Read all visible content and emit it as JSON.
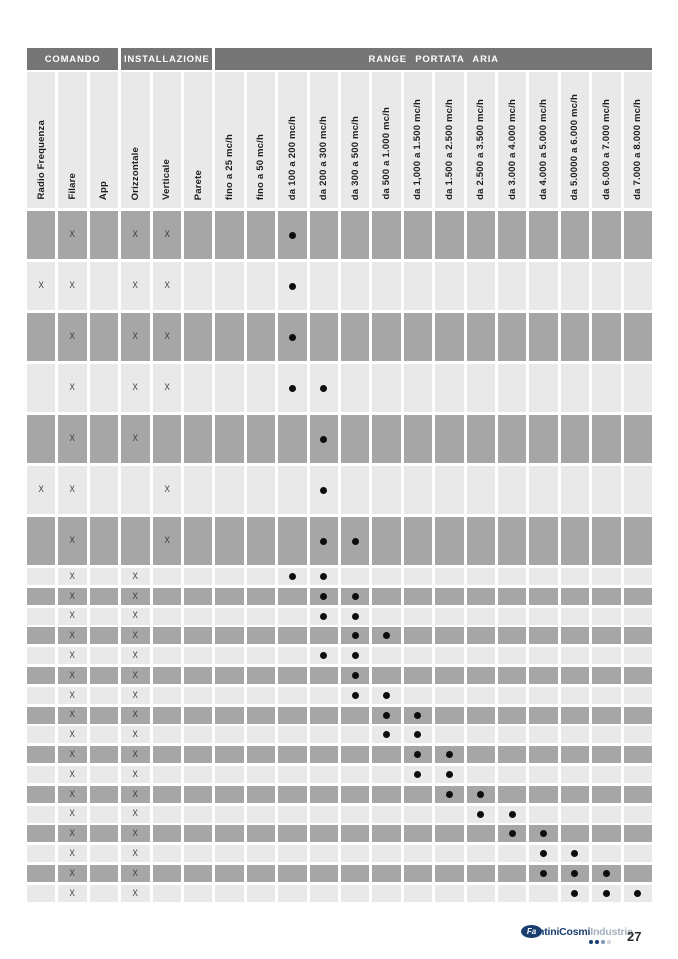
{
  "colors": {
    "header_band": "#757575",
    "row_dark": "#a6a6a6",
    "row_light": "#e9e9e9",
    "x_mark": "#3a3a3a",
    "dot": "#0d0d0d",
    "logo_blue": "#1a3e6f",
    "logo_gray": "#a5b1be"
  },
  "table": {
    "groups": [
      {
        "label": "COMANDO",
        "span": 3
      },
      {
        "label": "INSTALLAZIONE",
        "span": 3
      },
      {
        "label": "RANGE PORTATA ARIA",
        "span": 14
      }
    ],
    "columns": [
      "Radio Frequenza",
      "Filare",
      "App",
      "Orizzontale",
      "Verticale",
      "Parete",
      "fino a 25 mc/h",
      "fino a 50 mc/h",
      "da 100 a 200 mc/h",
      "da 200 a 300 mc/h",
      "da 300 a 500 mc/h",
      "da 500 a 1.000 mc/h",
      "da 1,000 a 1.500 mc/h",
      "da 1.500 a 2.500 mc/h",
      "da 2.500 a 3.500 mc/h",
      "da 3.000 a 4.000 mc/h",
      "da 4.000 a 5.000 mc/h",
      "da 5.0000 a 6.000 mc/h",
      "da 6.000 a 7.000 mc/h",
      "da 7.000 a 8.000 mc/h"
    ],
    "x_symbol": "X",
    "rows": [
      {
        "size": "tall",
        "shade": "dark",
        "x": [
          1,
          3,
          4
        ],
        "dots": [
          8
        ]
      },
      {
        "size": "tall",
        "shade": "light",
        "x": [
          0,
          1,
          3,
          4
        ],
        "dots": [
          8
        ]
      },
      {
        "size": "tall",
        "shade": "dark",
        "x": [
          1,
          3,
          4
        ],
        "dots": [
          8
        ]
      },
      {
        "size": "tall",
        "shade": "light",
        "x": [
          1,
          3,
          4
        ],
        "dots": [
          8,
          9
        ]
      },
      {
        "size": "tall",
        "shade": "dark",
        "x": [
          1,
          3
        ],
        "dots": [
          9
        ]
      },
      {
        "size": "tall",
        "shade": "light",
        "x": [
          0,
          1,
          4
        ],
        "dots": [
          9
        ]
      },
      {
        "size": "tall",
        "shade": "dark",
        "x": [
          1,
          4
        ],
        "dots": [
          9,
          10
        ]
      },
      {
        "size": "small",
        "shade": "light",
        "x": [
          1,
          3
        ],
        "dots": [
          8,
          9
        ]
      },
      {
        "size": "small",
        "shade": "dark",
        "x": [
          1,
          3
        ],
        "dots": [
          9,
          10
        ]
      },
      {
        "size": "small",
        "shade": "light",
        "x": [
          1,
          3
        ],
        "dots": [
          9,
          10
        ]
      },
      {
        "size": "small",
        "shade": "dark",
        "x": [
          1,
          3
        ],
        "dots": [
          10,
          11
        ]
      },
      {
        "size": "small",
        "shade": "light",
        "x": [
          1,
          3
        ],
        "dots": [
          9,
          10
        ]
      },
      {
        "size": "small",
        "shade": "dark",
        "x": [
          1,
          3
        ],
        "dots": [
          10
        ]
      },
      {
        "size": "small",
        "shade": "light",
        "x": [
          1,
          3
        ],
        "dots": [
          10,
          11
        ]
      },
      {
        "size": "small",
        "shade": "dark",
        "x": [
          1,
          3
        ],
        "dots": [
          11,
          12
        ]
      },
      {
        "size": "small",
        "shade": "light",
        "x": [
          1,
          3
        ],
        "dots": [
          11,
          12
        ]
      },
      {
        "size": "small",
        "shade": "dark",
        "x": [
          1,
          3
        ],
        "dots": [
          12,
          13
        ]
      },
      {
        "size": "small",
        "shade": "light",
        "x": [
          1,
          3
        ],
        "dots": [
          12,
          13
        ]
      },
      {
        "size": "small",
        "shade": "dark",
        "x": [
          1,
          3
        ],
        "dots": [
          13,
          14
        ]
      },
      {
        "size": "small",
        "shade": "light",
        "x": [
          1,
          3
        ],
        "dots": [
          14,
          15
        ]
      },
      {
        "size": "small",
        "shade": "dark",
        "x": [
          1,
          3
        ],
        "dots": [
          15,
          16
        ]
      },
      {
        "size": "small",
        "shade": "light",
        "x": [
          1,
          3
        ],
        "dots": [
          16,
          17
        ]
      },
      {
        "size": "small",
        "shade": "dark",
        "x": [
          1,
          3
        ],
        "dots": [
          16,
          17,
          18
        ]
      },
      {
        "size": "small",
        "shade": "light",
        "x": [
          1,
          3
        ],
        "dots": [
          17,
          18,
          19
        ]
      }
    ]
  },
  "footer": {
    "logo": {
      "badge_text": "Fa",
      "brand": "ntiniCosmi",
      "suffix": "Industrie",
      "dot_colors": [
        "#1a3e6f",
        "#1a3e6f",
        "#7f97b5",
        "#cdd5de"
      ]
    },
    "page_number": "27"
  }
}
